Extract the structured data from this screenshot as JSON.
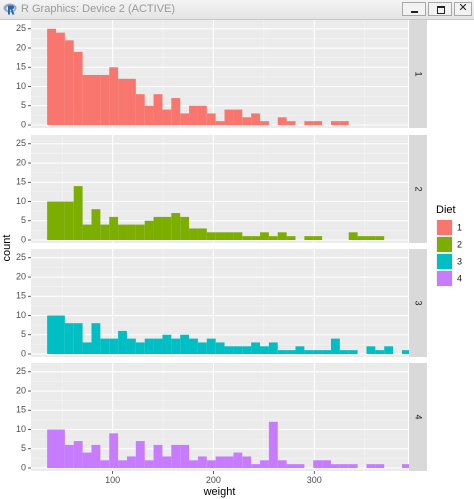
{
  "window": {
    "title": "R Graphics: Device 2 (ACTIVE)",
    "icon": "r-logo-icon",
    "buttons": [
      "minimize",
      "maximize",
      "close"
    ],
    "close_glyph": "✕"
  },
  "chart_data": {
    "type": "bar",
    "subtype": "faceted-histogram",
    "xlabel": "weight",
    "ylabel": "count",
    "xlim": [
      19,
      393
    ],
    "ylim": [
      0,
      26.5
    ],
    "x_ticks": [
      100,
      200,
      300
    ],
    "y_ticks": [
      0,
      5,
      10,
      15,
      20,
      25
    ],
    "bin_width": 8.8,
    "bins_start": 35,
    "legend": {
      "title": "Diet",
      "position": "right",
      "entries": [
        {
          "label": "1",
          "color": "#F8766D"
        },
        {
          "label": "2",
          "color": "#7CAE00"
        },
        {
          "label": "3",
          "color": "#00BFC4"
        },
        {
          "label": "4",
          "color": "#C77CFF"
        }
      ]
    },
    "series": [
      {
        "strip_label": "1",
        "color": "#F8766D",
        "values": [
          25,
          24,
          22,
          19,
          13,
          13,
          13,
          15,
          12,
          12,
          8,
          5,
          8,
          4,
          7,
          3,
          5,
          5,
          3,
          1,
          4,
          4,
          2,
          3,
          1,
          0,
          2,
          1,
          0,
          1,
          1,
          0,
          1,
          1
        ]
      },
      {
        "strip_label": "2",
        "color": "#7CAE00",
        "values": [
          10,
          10,
          10,
          14,
          4,
          8,
          4,
          6,
          4,
          4,
          4,
          5,
          6,
          6,
          7,
          6,
          3,
          3,
          2,
          2,
          2,
          2,
          1,
          1,
          2,
          1,
          2,
          1,
          0,
          1,
          1,
          0,
          0,
          0,
          2,
          1,
          1,
          1
        ]
      },
      {
        "strip_label": "3",
        "color": "#00BFC4",
        "values": [
          10,
          10,
          8,
          8,
          3,
          8,
          4,
          4,
          6,
          4,
          3,
          4,
          4,
          5,
          4,
          5,
          4,
          3,
          4,
          3,
          2,
          2,
          2,
          3,
          2,
          3,
          1,
          1,
          2,
          1,
          1,
          1,
          4,
          1,
          1,
          0,
          2,
          1,
          2,
          0,
          1,
          1
        ]
      },
      {
        "strip_label": "4",
        "color": "#C77CFF",
        "values": [
          10,
          10,
          6,
          7,
          4,
          6,
          2,
          9,
          2,
          3,
          7,
          2,
          6,
          3,
          6,
          6,
          2,
          3,
          2,
          3,
          3,
          4,
          3,
          1,
          2,
          12,
          2,
          1,
          1,
          0,
          2,
          2,
          1,
          1,
          1,
          0,
          1,
          1,
          0,
          0,
          1,
          1
        ]
      }
    ],
    "grid": true,
    "background": "#EBEBEB",
    "strip_color": "#D9D9D9"
  }
}
